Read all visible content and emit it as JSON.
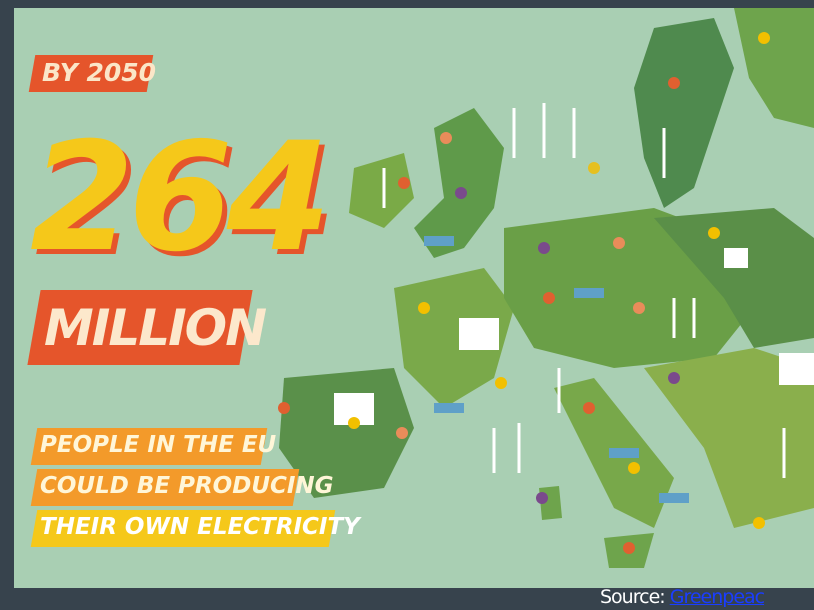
{
  "headline": {
    "year_label": "BY 2050",
    "number": "264",
    "unit": "MILLION",
    "caption": [
      "PEOPLE IN THE EU",
      "COULD BE PRODUCING",
      "THEIR OWN ELECTRICITY"
    ]
  },
  "source": {
    "label": "Source:",
    "link": "Greenpeac"
  }
}
